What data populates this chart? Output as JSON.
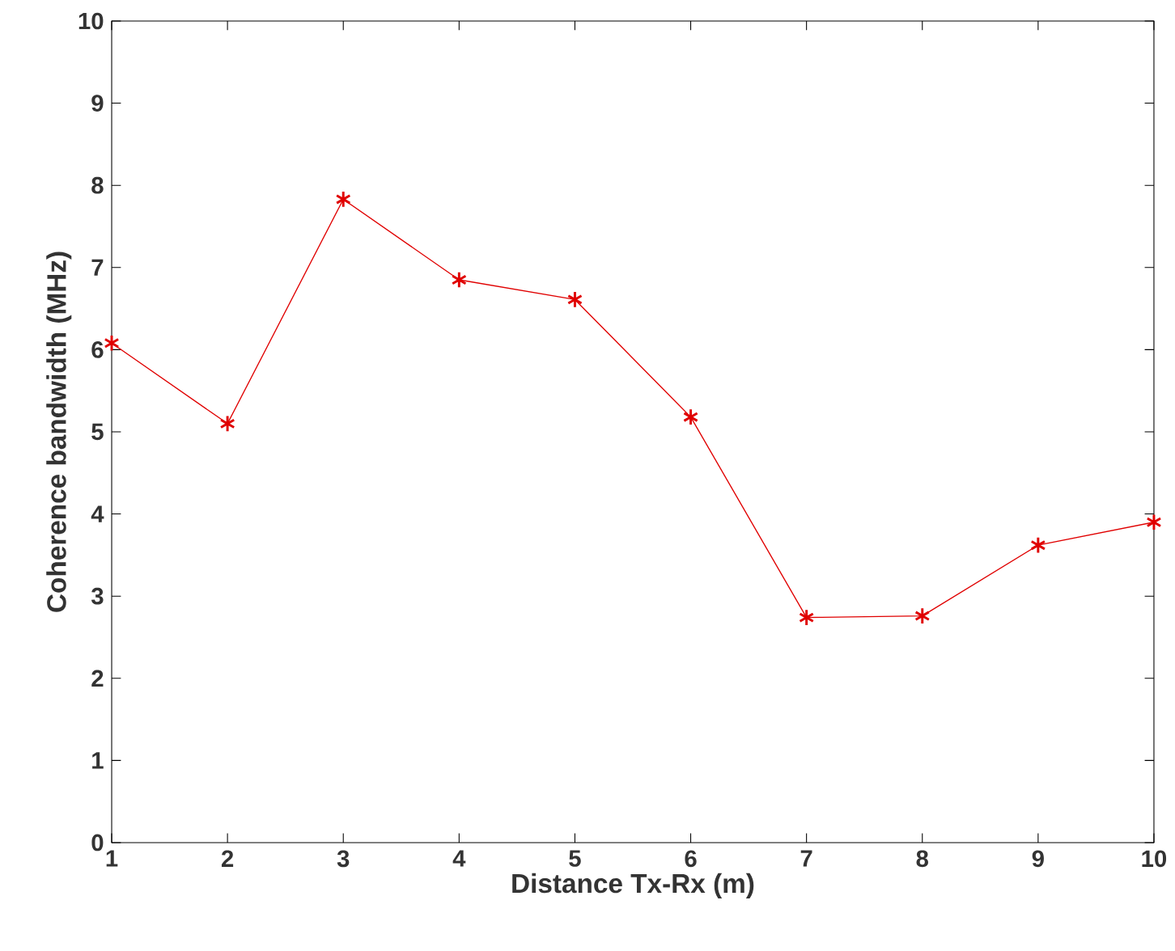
{
  "chart_data": {
    "type": "line",
    "xlabel": "Distance Tx-Rx (m)",
    "ylabel": "Coherence bandwidth (MHz)",
    "x": [
      1,
      2,
      3,
      4,
      5,
      6,
      7,
      8,
      9,
      10
    ],
    "series": [
      {
        "color": "#e00000",
        "values": [
          6.08,
          5.1,
          7.83,
          6.85,
          6.61,
          5.18,
          2.74,
          2.76,
          3.62,
          3.9
        ]
      }
    ],
    "xlim": [
      1,
      10
    ],
    "ylim": [
      0,
      10
    ],
    "xticks": [
      1,
      2,
      3,
      4,
      5,
      6,
      7,
      8,
      9,
      10
    ],
    "yticks": [
      0,
      1,
      2,
      3,
      4,
      5,
      6,
      7,
      8,
      9,
      10
    ],
    "grid": false,
    "marker": "cross",
    "line_style": "solid"
  }
}
